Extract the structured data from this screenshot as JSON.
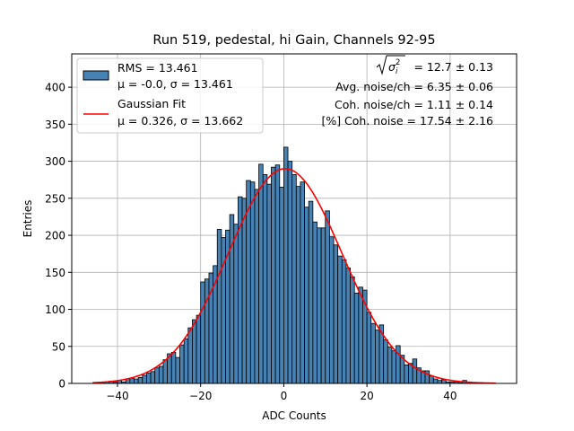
{
  "chart_data": {
    "type": "bar",
    "title": "Run 519, pedestal, hi Gain, Channels 92-95",
    "xlabel": "ADC Counts",
    "ylabel": "Entries",
    "xlim": [
      -51,
      56
    ],
    "ylim": [
      0,
      445
    ],
    "grid": true,
    "legend_position": "top-left",
    "x_ticks": [
      -40,
      -20,
      0,
      20,
      40
    ],
    "y_ticks": [
      0,
      50,
      100,
      150,
      200,
      250,
      300,
      350,
      400
    ],
    "bar_color": "#4682b4",
    "fit_color": "#ff0000",
    "histogram": {
      "bin_width": 1,
      "bin_starts": [
        -46,
        -45,
        -44,
        -43,
        -42,
        -41,
        -40,
        -39,
        -38,
        -37,
        -36,
        -35,
        -34,
        -33,
        -32,
        -31,
        -30,
        -29,
        -28,
        -27,
        -26,
        -25,
        -24,
        -23,
        -22,
        -21,
        -20,
        -19,
        -18,
        -17,
        -16,
        -15,
        -14,
        -13,
        -12,
        -11,
        -10,
        -9,
        -8,
        -7,
        -6,
        -5,
        -4,
        -3,
        -2,
        -1,
        0,
        1,
        2,
        3,
        4,
        5,
        6,
        7,
        8,
        9,
        10,
        11,
        12,
        13,
        14,
        15,
        16,
        17,
        18,
        19,
        20,
        21,
        22,
        23,
        24,
        25,
        26,
        27,
        28,
        29,
        30,
        31,
        32,
        33,
        34,
        35,
        36,
        37,
        38,
        39,
        40,
        41,
        42,
        43,
        44,
        45,
        46,
        47,
        48,
        49,
        50
      ],
      "counts": [
        0,
        1,
        1,
        2,
        3,
        2,
        4,
        2,
        6,
        7,
        6,
        8,
        11,
        14,
        16,
        21,
        23,
        32,
        40,
        42,
        35,
        52,
        60,
        75,
        86,
        92,
        137,
        141,
        149,
        159,
        208,
        197,
        207,
        228,
        215,
        252,
        250,
        274,
        272,
        262,
        296,
        282,
        269,
        292,
        295,
        265,
        319,
        300,
        282,
        266,
        272,
        238,
        246,
        218,
        210,
        210,
        233,
        198,
        187,
        172,
        167,
        156,
        144,
        122,
        130,
        126,
        96,
        81,
        72,
        79,
        59,
        49,
        44,
        51,
        38,
        25,
        27,
        33,
        21,
        17,
        17,
        10,
        6,
        4,
        5,
        2,
        2,
        2,
        1,
        4,
        2,
        1,
        1,
        1,
        0,
        0,
        0
      ]
    },
    "fit": {
      "mu": 0.326,
      "sigma": 13.662,
      "amplitude": 290,
      "x_range": [
        -46,
        51
      ]
    },
    "legend": [
      {
        "kind": "bar",
        "line1": "RMS = 13.461",
        "line2": "μ = -0.0, σ = 13.461"
      },
      {
        "kind": "line",
        "line1": "Gaussian Fit",
        "line2": "μ = 0.326, σ = 13.662"
      }
    ],
    "annotations": [
      " = 12.7 ± 0.13",
      "Avg. noise/ch = 6.35 ± 0.06",
      "Coh. noise/ch = 1.11 ± 0.14",
      "[%] Coh. noise = 17.54 ± 2.16"
    ]
  }
}
